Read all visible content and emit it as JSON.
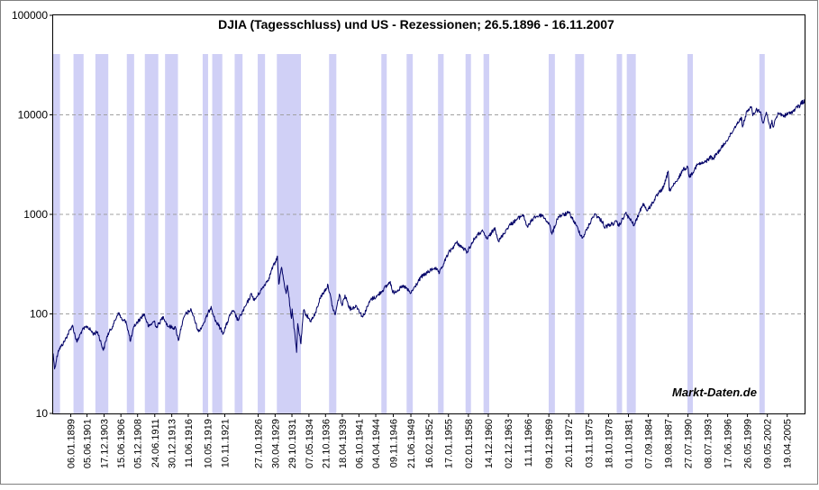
{
  "chart_data": {
    "type": "line",
    "title": "DJIA (Tagesschluss) und US - Rezessionen; 26.5.1896 - 16.11.2007",
    "watermark": "Markt-Daten.de",
    "y_scale": "log",
    "ylim": [
      10,
      100000
    ],
    "y_ticks": [
      10,
      100,
      1000,
      10000,
      100000
    ],
    "y_tick_labels": [
      "10",
      "100",
      "1000",
      "10000",
      "100000"
    ],
    "grid": "horizontal-dashed",
    "xlim": [
      "1896-05-26",
      "2007-11-16"
    ],
    "x_tick_labels": [
      "06.01.1899",
      "05.06.1901",
      "17.12.1903",
      "15.06.1906",
      "05.12.1908",
      "24.06.1911",
      "30.12.1913",
      "11.06.1916",
      "10.05.1919",
      "10.11.1921",
      "27.10.1926",
      "30.04.1929",
      "29.10.1931",
      "07.05.1934",
      "21.10.1936",
      "18.04.1939",
      "06.10.1941",
      "04.04.1944",
      "09.11.1946",
      "21.06.1949",
      "16.02.1952",
      "17.01.1955",
      "02.01.1958",
      "14.12.1960",
      "02.12.1963",
      "11.11.1966",
      "09.12.1969",
      "20.11.1972",
      "03.11.1975",
      "18.10.1978",
      "01.10.1981",
      "07.09.1984",
      "19.08.1987",
      "27.07.1990",
      "08.07.1993",
      "17.06.1996",
      "26.05.1999",
      "09.05.2002",
      "19.04.2005"
    ],
    "x_tick_dates": [
      "1899-01-06",
      "1901-06-05",
      "1903-12-17",
      "1906-06-15",
      "1908-12-05",
      "1911-06-24",
      "1913-12-30",
      "1916-06-11",
      "1919-05-10",
      "1921-11-10",
      "1926-10-27",
      "1929-04-30",
      "1931-10-29",
      "1934-05-07",
      "1936-10-21",
      "1939-04-18",
      "1941-10-06",
      "1944-04-04",
      "1946-11-09",
      "1949-06-21",
      "1952-02-16",
      "1955-01-17",
      "1958-01-02",
      "1960-12-14",
      "1963-12-02",
      "1966-11-11",
      "1969-12-09",
      "1972-11-20",
      "1975-11-03",
      "1978-10-18",
      "1981-10-01",
      "1984-09-07",
      "1987-08-19",
      "1990-07-27",
      "1993-07-08",
      "1996-06-17",
      "1999-05-26",
      "2002-05-09",
      "2005-04-19"
    ],
    "series": [
      {
        "color": "#000066",
        "x": [
          "1896-05-26",
          "1896-08-10",
          "1897-03-01",
          "1898-01-01",
          "1899-04-01",
          "1899-12-01",
          "1900-09-01",
          "1901-06-17",
          "1902-06-01",
          "1903-01-01",
          "1903-11-09",
          "1904-06-01",
          "1905-06-01",
          "1906-01-19",
          "1906-10-01",
          "1907-03-14",
          "1907-11-15",
          "1908-06-01",
          "1909-11-19",
          "1910-07-26",
          "1911-06-01",
          "1911-09-25",
          "1912-09-30",
          "1913-06-10",
          "1914-07-30",
          "1914-12-24",
          "1915-06-01",
          "1915-12-27",
          "1916-11-21",
          "1917-12-19",
          "1918-10-18",
          "1919-11-03",
          "1920-05-20",
          "1921-08-24",
          "1922-10-14",
          "1923-03-20",
          "1923-10-27",
          "1924-12-31",
          "1925-11-06",
          "1926-03-30",
          "1927-06-01",
          "1928-06-01",
          "1928-12-31",
          "1929-06-01",
          "1929-09-03",
          "1929-11-13",
          "1930-04-17",
          "1930-12-16",
          "1931-02-24",
          "1931-10-05",
          "1931-11-09",
          "1932-07-08",
          "1932-09-07",
          "1933-02-27",
          "1933-07-18",
          "1934-07-26",
          "1935-03-14",
          "1935-12-31",
          "1937-03-10",
          "1937-11-24",
          "1938-03-31",
          "1938-11-12",
          "1939-04-08",
          "1939-09-12",
          "1940-06-10",
          "1941-06-01",
          "1942-04-28",
          "1943-07-14",
          "1944-06-01",
          "1945-12-31",
          "1946-05-29",
          "1946-10-09",
          "1948-06-15",
          "1949-06-13",
          "1950-12-31",
          "1952-12-31",
          "1953-09-14",
          "1954-12-31",
          "1956-04-06",
          "1957-10-22",
          "1958-12-31",
          "1959-12-31",
          "1960-10-25",
          "1961-12-13",
          "1962-06-26",
          "1963-12-31",
          "1966-02-09",
          "1966-10-07",
          "1967-09-25",
          "1968-12-03",
          "1969-12-31",
          "1970-05-26",
          "1971-04-28",
          "1972-12-11",
          "1973-12-05",
          "1974-12-06",
          "1976-09-21",
          "1977-12-31",
          "1978-02-28",
          "1979-12-31",
          "1980-04-21",
          "1981-04-27",
          "1982-08-12",
          "1983-11-29",
          "1984-07-24",
          "1985-12-31",
          "1986-12-31",
          "1987-08-25",
          "1987-10-19",
          "1988-12-31",
          "1989-10-09",
          "1990-07-16",
          "1990-10-11",
          "1991-12-31",
          "1992-12-31",
          "1993-12-29",
          "1994-04-04",
          "1995-12-29",
          "1996-12-27",
          "1997-10-27",
          "1998-07-17",
          "1998-08-31",
          "1999-05-13",
          "2000-01-14",
          "2000-03-07",
          "2000-09-06",
          "2001-05-21",
          "2001-09-21",
          "2002-03-19",
          "2002-10-09",
          "2003-01-14",
          "2003-03-11",
          "2003-12-31",
          "2004-10-25",
          "2005-12-30",
          "2006-06-13",
          "2006-12-29",
          "2007-03-05",
          "2007-07-19",
          "2007-08-16",
          "2007-10-09",
          "2007-11-16"
        ],
        "y": [
          40,
          28,
          43,
          52,
          77,
          52,
          68,
          75,
          63,
          66,
          43,
          60,
          80,
          103,
          85,
          85,
          53,
          75,
          100,
          74,
          85,
          73,
          94,
          75,
          72,
          54,
          75,
          99,
          110,
          66,
          82,
          119,
          88,
          64,
          103,
          105,
          86,
          121,
          160,
          136,
          180,
          230,
          300,
          330,
          381,
          199,
          294,
          160,
          194,
          90,
          112,
          41,
          80,
          50,
          108,
          85,
          96,
          144,
          194,
          113,
          98,
          158,
          121,
          155,
          112,
          120,
          93,
          140,
          150,
          195,
          212,
          163,
          190,
          161,
          235,
          292,
          256,
          404,
          521,
          420,
          584,
          679,
          566,
          735,
          535,
          767,
          995,
          744,
          938,
          985,
          800,
          631,
          950,
          1036,
          788,
          578,
          1014,
          830,
          742,
          838,
          759,
          1024,
          777,
          1287,
          1087,
          1547,
          1896,
          2722,
          1739,
          2169,
          2791,
          2999,
          2365,
          3169,
          3301,
          3794,
          3593,
          5117,
          6448,
          8178,
          9337,
          7539,
          11107,
          11722,
          9796,
          11310,
          10581,
          8236,
          10635,
          7286,
          8842,
          7524,
          10453,
          9749,
          10717,
          11260,
          12463,
          12050,
          14000,
          12845,
          14164,
          12990
        ]
      }
    ],
    "recessions": [
      [
        "1896-01-01",
        "1897-06-01"
      ],
      [
        "1899-06-01",
        "1900-12-01"
      ],
      [
        "1902-09-01",
        "1904-08-01"
      ],
      [
        "1907-05-01",
        "1908-06-01"
      ],
      [
        "1910-01-01",
        "1912-01-01"
      ],
      [
        "1913-01-01",
        "1914-12-01"
      ],
      [
        "1918-08-01",
        "1919-03-01"
      ],
      [
        "1920-01-01",
        "1921-07-01"
      ],
      [
        "1923-05-01",
        "1924-07-01"
      ],
      [
        "1926-10-01",
        "1927-11-01"
      ],
      [
        "1929-08-01",
        "1933-03-01"
      ],
      [
        "1937-05-01",
        "1938-06-01"
      ],
      [
        "1945-02-01",
        "1945-10-01"
      ],
      [
        "1948-11-01",
        "1949-10-01"
      ],
      [
        "1953-07-01",
        "1954-05-01"
      ],
      [
        "1957-08-01",
        "1958-04-01"
      ],
      [
        "1960-04-01",
        "1961-02-01"
      ],
      [
        "1969-12-01",
        "1970-11-01"
      ],
      [
        "1973-11-01",
        "1975-03-01"
      ],
      [
        "1980-01-01",
        "1980-07-01"
      ],
      [
        "1981-07-01",
        "1982-11-01"
      ],
      [
        "1990-07-01",
        "1991-03-01"
      ],
      [
        "2001-03-01",
        "2001-11-01"
      ]
    ]
  }
}
